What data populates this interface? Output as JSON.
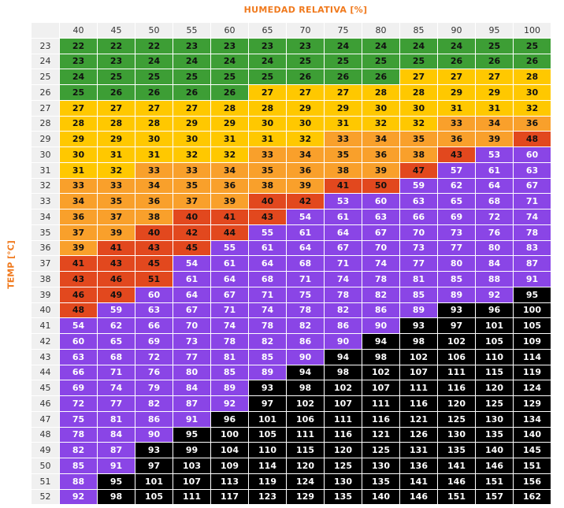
{
  "title": "HUMEDAD RELATIVA [%]",
  "y_label": "TEMP [°C]",
  "table": {
    "columns": [
      40,
      45,
      50,
      55,
      60,
      65,
      70,
      75,
      80,
      85,
      90,
      95,
      100
    ],
    "rows": [
      {
        "temp": 23,
        "values": [
          22,
          22,
          22,
          23,
          23,
          23,
          23,
          24,
          24,
          24,
          24,
          25,
          25
        ]
      },
      {
        "temp": 24,
        "values": [
          23,
          23,
          24,
          24,
          24,
          24,
          25,
          25,
          25,
          25,
          26,
          26,
          26
        ]
      },
      {
        "temp": 25,
        "values": [
          24,
          25,
          25,
          25,
          25,
          25,
          26,
          26,
          26,
          27,
          27,
          27,
          28
        ]
      },
      {
        "temp": 26,
        "values": [
          25,
          26,
          26,
          26,
          26,
          27,
          27,
          27,
          28,
          28,
          29,
          29,
          30
        ]
      },
      {
        "temp": 27,
        "values": [
          27,
          27,
          27,
          27,
          28,
          28,
          29,
          29,
          30,
          30,
          31,
          31,
          32
        ]
      },
      {
        "temp": 28,
        "values": [
          28,
          28,
          28,
          29,
          29,
          30,
          30,
          31,
          32,
          32,
          33,
          34,
          36
        ]
      },
      {
        "temp": 29,
        "values": [
          29,
          29,
          30,
          30,
          31,
          31,
          32,
          33,
          34,
          35,
          36,
          39,
          48
        ]
      },
      {
        "temp": 30,
        "values": [
          30,
          31,
          31,
          32,
          32,
          33,
          34,
          35,
          36,
          38,
          43,
          53,
          60
        ]
      },
      {
        "temp": 31,
        "values": [
          31,
          32,
          33,
          33,
          34,
          35,
          36,
          38,
          39,
          47,
          57,
          61,
          63
        ]
      },
      {
        "temp": 32,
        "values": [
          33,
          33,
          34,
          35,
          36,
          38,
          39,
          41,
          50,
          59,
          62,
          64,
          67
        ]
      },
      {
        "temp": 33,
        "values": [
          34,
          35,
          36,
          37,
          39,
          40,
          42,
          53,
          60,
          63,
          65,
          68,
          71
        ]
      },
      {
        "temp": 34,
        "values": [
          36,
          37,
          38,
          40,
          41,
          43,
          54,
          61,
          63,
          66,
          69,
          72,
          74
        ]
      },
      {
        "temp": 35,
        "values": [
          37,
          39,
          40,
          42,
          44,
          55,
          61,
          64,
          67,
          70,
          73,
          76,
          78
        ]
      },
      {
        "temp": 36,
        "values": [
          39,
          41,
          43,
          45,
          55,
          61,
          64,
          67,
          70,
          73,
          77,
          80,
          83
        ]
      },
      {
        "temp": 37,
        "values": [
          41,
          43,
          45,
          54,
          61,
          64,
          68,
          71,
          74,
          77,
          80,
          84,
          87
        ]
      },
      {
        "temp": 38,
        "values": [
          43,
          46,
          51,
          61,
          64,
          68,
          71,
          74,
          78,
          81,
          85,
          88,
          91
        ]
      },
      {
        "temp": 39,
        "values": [
          46,
          49,
          60,
          64,
          67,
          71,
          75,
          78,
          82,
          85,
          89,
          92,
          95
        ]
      },
      {
        "temp": 40,
        "values": [
          48,
          59,
          63,
          67,
          71,
          74,
          78,
          82,
          86,
          89,
          93,
          96,
          100
        ]
      },
      {
        "temp": 41,
        "values": [
          54,
          62,
          66,
          70,
          74,
          78,
          82,
          86,
          90,
          93,
          97,
          101,
          105
        ]
      },
      {
        "temp": 42,
        "values": [
          60,
          65,
          69,
          73,
          78,
          82,
          86,
          90,
          94,
          98,
          102,
          105,
          109
        ]
      },
      {
        "temp": 43,
        "values": [
          63,
          68,
          72,
          77,
          81,
          85,
          90,
          94,
          98,
          102,
          106,
          110,
          114
        ]
      },
      {
        "temp": 44,
        "values": [
          66,
          71,
          76,
          80,
          85,
          89,
          94,
          98,
          102,
          107,
          111,
          115,
          119
        ]
      },
      {
        "temp": 45,
        "values": [
          69,
          74,
          79,
          84,
          89,
          93,
          98,
          102,
          107,
          111,
          116,
          120,
          124
        ]
      },
      {
        "temp": 46,
        "values": [
          72,
          77,
          82,
          87,
          92,
          97,
          102,
          107,
          111,
          116,
          120,
          125,
          129
        ]
      },
      {
        "temp": 47,
        "values": [
          75,
          81,
          86,
          91,
          96,
          101,
          106,
          111,
          116,
          121,
          125,
          130,
          134
        ]
      },
      {
        "temp": 48,
        "values": [
          78,
          84,
          90,
          95,
          100,
          105,
          111,
          116,
          121,
          126,
          130,
          135,
          140
        ]
      },
      {
        "temp": 49,
        "values": [
          82,
          87,
          93,
          99,
          104,
          110,
          115,
          120,
          125,
          131,
          135,
          140,
          145
        ]
      },
      {
        "temp": 50,
        "values": [
          85,
          91,
          97,
          103,
          109,
          114,
          120,
          125,
          130,
          136,
          141,
          146,
          151
        ]
      },
      {
        "temp": 51,
        "values": [
          88,
          95,
          101,
          107,
          113,
          119,
          124,
          130,
          135,
          141,
          146,
          151,
          156
        ]
      },
      {
        "temp": 52,
        "values": [
          92,
          98,
          105,
          111,
          117,
          123,
          129,
          135,
          140,
          146,
          151,
          157,
          162
        ]
      }
    ]
  }
}
